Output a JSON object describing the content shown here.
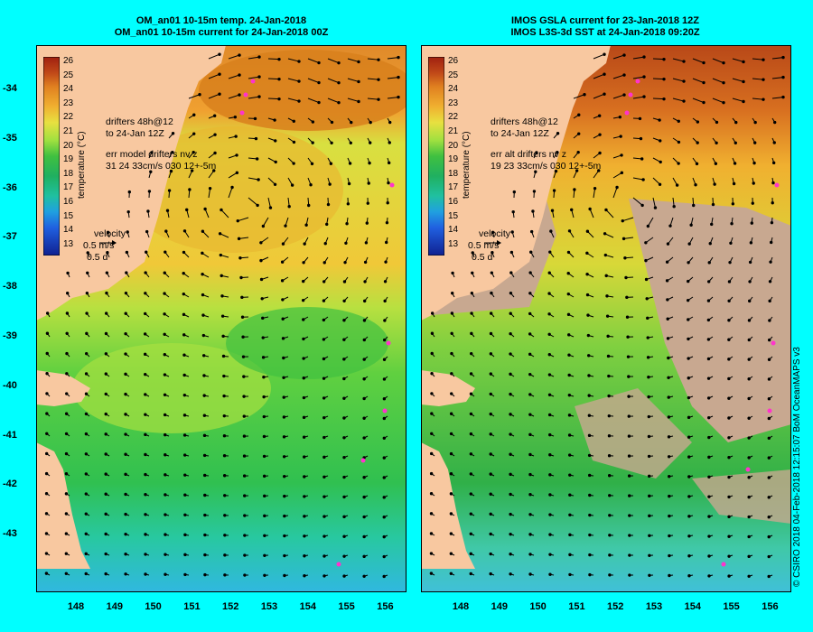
{
  "left": {
    "title_line1": "OM_an01 10-15m temp. 24-Jan-2018",
    "title_line2": "OM_an01 10-15m current for 24-Jan-2018 00Z",
    "drifters_line1": "drifters 48h@12",
    "drifters_line2": "to 24-Jan 12Z",
    "err_line1": "err model drifters nv z",
    "err_line2": "31 24 33cm/s 030 12+-5m",
    "velocity_label": "velocity",
    "velocity_scale": "0.5 m/s",
    "velocity_time": "0.5 d"
  },
  "right": {
    "title_line1": "IMOS GSLA current for 23-Jan-2018 12Z",
    "title_line2": "IMOS L3S-3d SST at 24-Jan-2018 09:20Z",
    "drifters_line1": "drifters 48h@12",
    "drifters_line2": "to 24-Jan 12Z",
    "err_line1": "err alt drifters nv z",
    "err_line2": "19 23 33cm/s 030 12+-5m",
    "velocity_label": "velocity",
    "velocity_scale": "0.5 m/s",
    "velocity_time": "0.5 d"
  },
  "colorbar": {
    "title": "temperature (°C)",
    "ticks": [
      "26",
      "25",
      "24",
      "23",
      "22",
      "21",
      "20",
      "19",
      "18",
      "17",
      "16",
      "15",
      "14",
      "13"
    ]
  },
  "axes": {
    "lat_ticks": [
      "-34",
      "-35",
      "-36",
      "-37",
      "-38",
      "-39",
      "-40",
      "-41",
      "-42",
      "-43"
    ],
    "lon_ticks": [
      "148",
      "149",
      "150",
      "151",
      "152",
      "153",
      "154",
      "155",
      "156"
    ]
  },
  "credit": "© CSIRO 2018  04-Feb-2018 12:15:07 BoM OceanMAPS v3",
  "colors": {
    "background": "#00ffff",
    "land": "#f8c8a0",
    "no_data": "#c8a890",
    "drifter": "#ff33cc"
  }
}
